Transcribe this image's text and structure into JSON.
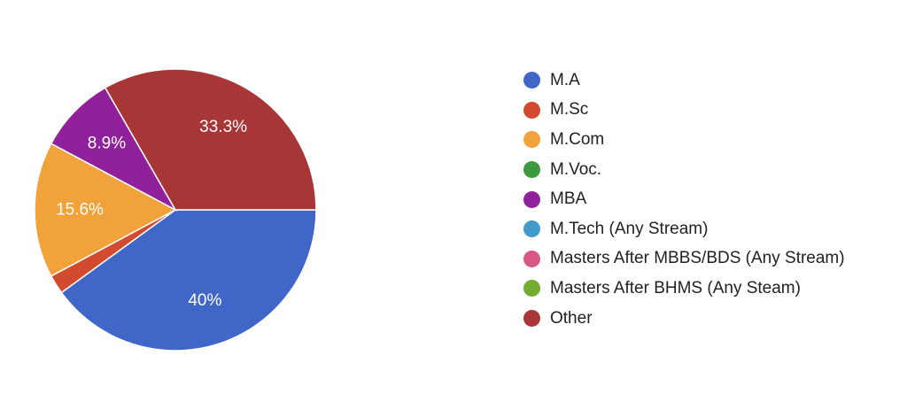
{
  "chart_data": {
    "type": "pie",
    "title": "",
    "slices": [
      {
        "name": "M.A",
        "value": 40,
        "label": "40%",
        "color": "#4066c8"
      },
      {
        "name": "M.Sc",
        "value": 2.2,
        "label": "",
        "color": "#d24a30"
      },
      {
        "name": "M.Com",
        "value": 15.6,
        "label": "15.6%",
        "color": "#f2a23a"
      },
      {
        "name": "M.Voc.",
        "value": 0,
        "label": "",
        "color": "#3c9a3e"
      },
      {
        "name": "MBA",
        "value": 8.9,
        "label": "8.9%",
        "color": "#91219a"
      },
      {
        "name": "M.Tech (Any Stream)",
        "value": 0,
        "label": "",
        "color": "#3f9ccb"
      },
      {
        "name": "Masters After MBBS/BDS (Any Stream)",
        "value": 0,
        "label": "",
        "color": "#d95885"
      },
      {
        "name": "Masters After BHMS (Any Steam)",
        "value": 0,
        "label": "",
        "color": "#72ad31"
      },
      {
        "name": "Other",
        "value": 33.3,
        "label": "33.3%",
        "color": "#a93636"
      }
    ],
    "legend_position": "right"
  }
}
